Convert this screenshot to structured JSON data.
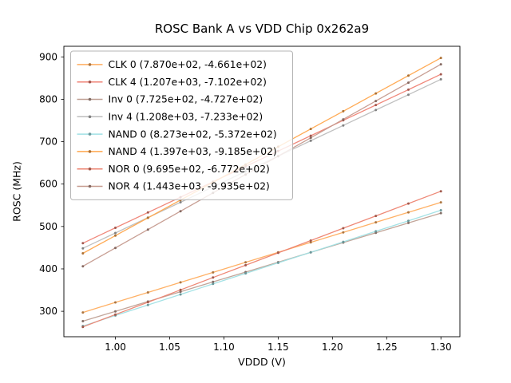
{
  "figure": {
    "title": "ROSC Bank A vs VDD Chip 0x262a9"
  },
  "chart_data": {
    "type": "line",
    "title": "ROSC Bank A vs VDD Chip 0x262a9",
    "xlabel": "VDDD (V)",
    "ylabel": "ROSC (MHz)",
    "xlim": [
      0.9525,
      1.3175
    ],
    "ylim": [
      240,
      925
    ],
    "xticks": [
      1.0,
      1.05,
      1.1,
      1.15,
      1.2,
      1.25,
      1.3
    ],
    "yticks": [
      300,
      400,
      500,
      600,
      700,
      800,
      900
    ],
    "grid": false,
    "legend_position": "upper left",
    "x": [
      0.97,
      1.0,
      1.03,
      1.06,
      1.09,
      1.12,
      1.15,
      1.18,
      1.21,
      1.24,
      1.27,
      1.3
    ],
    "series": [
      {
        "name": "CLK 0",
        "label": "CLK 0 (7.870e+02, -4.661e+02)",
        "slope": 787.0,
        "intercept": -466.1,
        "color": "#ffad5e"
      },
      {
        "name": "CLK 4",
        "label": "CLK 4 (1.207e+03, -7.102e+02)",
        "slope": 1207.0,
        "intercept": -710.2,
        "color": "#ef8274"
      },
      {
        "name": "Inv 0",
        "label": "Inv 0 (7.725e+02, -4.727e+02)",
        "slope": 772.5,
        "intercept": -472.7,
        "color": "#bfa094"
      },
      {
        "name": "Inv 4",
        "label": "Inv 4 (1.208e+03, -7.233e+02)",
        "slope": 1208.0,
        "intercept": -723.3,
        "color": "#bdbdbd"
      },
      {
        "name": "NAND 0",
        "label": "NAND 0 (8.273e+02, -5.372e+02)",
        "slope": 827.3,
        "intercept": -537.2,
        "color": "#9fe0e4"
      },
      {
        "name": "NAND 4",
        "label": "NAND 4 (1.397e+03, -9.185e+02)",
        "slope": 1397.0,
        "intercept": -918.5,
        "color": "#ffa64d"
      },
      {
        "name": "NOR 0",
        "label": "NOR 0 (9.695e+02, -6.772e+02)",
        "slope": 969.5,
        "intercept": -677.2,
        "color": "#ed8370"
      },
      {
        "name": "NOR 4",
        "label": "NOR 4 (1.443e+03, -9.935e+02)",
        "slope": 1443.0,
        "intercept": -993.5,
        "color": "#c59a8e"
      }
    ]
  }
}
